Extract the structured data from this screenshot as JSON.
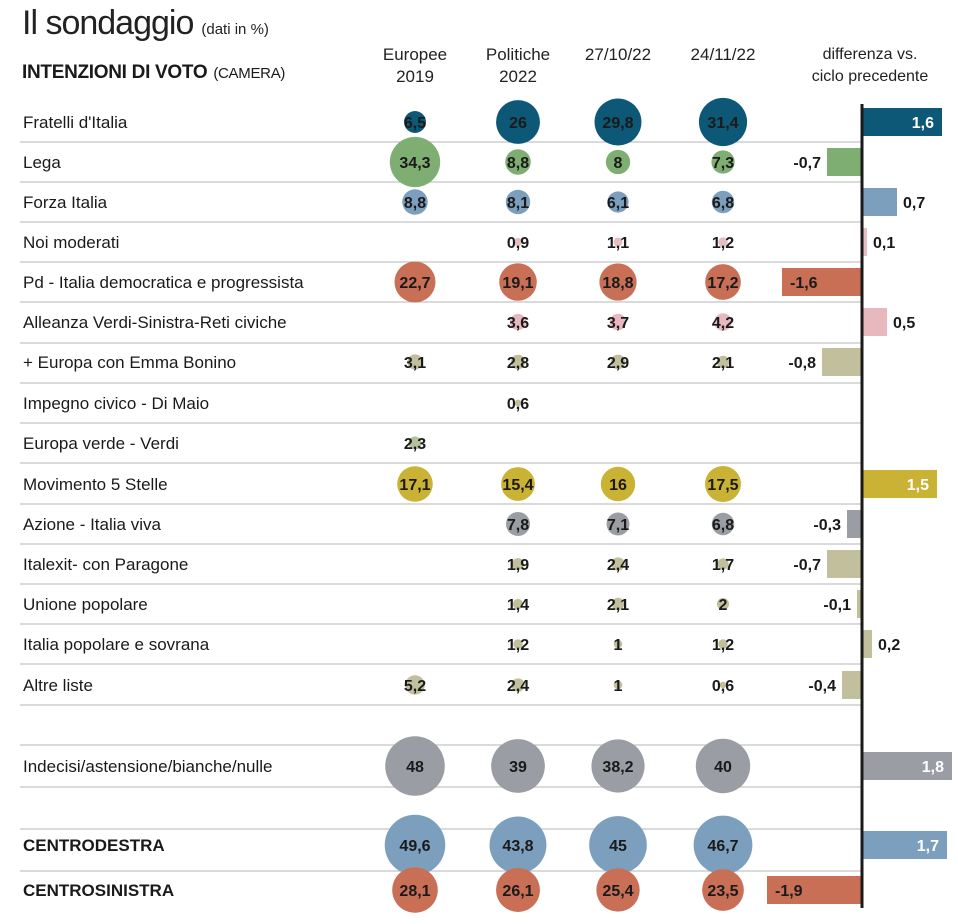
{
  "header": {
    "title": "Il sondaggio",
    "unit_note": "(dati in %)",
    "subtitle": "INTENZIONI DI VOTO",
    "subtitle_note": "(CAMERA)"
  },
  "colors": {
    "fdi": "#0d5777",
    "lega": "#7fae72",
    "fi": "#7c9fbe",
    "noimod": "#e6c0c0",
    "pd": "#c96f55",
    "avs": "#e7b8bd",
    "europa": "#c2bf9c",
    "impegno": "#c2bf9c",
    "euroverde": "#b3c19c",
    "m5s": "#c9b234",
    "azione": "#9a9ea4",
    "italexit": "#c2bf9c",
    "up": "#c2bf9c",
    "ips": "#c2bf9c",
    "altre": "#c2bf9c",
    "indecisi": "#9a9ea4",
    "cdx": "#7c9fbe",
    "csx": "#c96f55",
    "rule": "#b5b5b5",
    "axis": "#1a1a1a"
  },
  "chart_data": {
    "type": "bubble-table",
    "title": "Il sondaggio",
    "subtitle": "INTENZIONI DI VOTO (CAMERA)",
    "unit": "(dati in %)",
    "columns": [
      "Europee 2019",
      "Politiche 2022",
      "27/10/22",
      "24/11/22"
    ],
    "columns_display": [
      [
        "Europee",
        "2019"
      ],
      [
        "Politiche",
        "2022"
      ],
      [
        "27/10/22"
      ],
      [
        "24/11/22"
      ]
    ],
    "diff_header": [
      "differenza vs.",
      "ciclo precedente"
    ],
    "rows": [
      {
        "label": "Fratelli d'Italia",
        "color": "fdi",
        "values": [
          6.5,
          26,
          29.8,
          31.4
        ],
        "display": [
          "6,5",
          "26",
          "29,8",
          "31,4"
        ],
        "diff": 1.6,
        "diff_display": "1,6"
      },
      {
        "label": "Lega",
        "color": "lega",
        "values": [
          34.3,
          8.8,
          8,
          7.3
        ],
        "display": [
          "34,3",
          "8,8",
          "8",
          "7,3"
        ],
        "diff": -0.7,
        "diff_display": "-0,7"
      },
      {
        "label": "Forza Italia",
        "color": "fi",
        "values": [
          8.8,
          8.1,
          6.1,
          6.8
        ],
        "display": [
          "8,8",
          "8,1",
          "6,1",
          "6,8"
        ],
        "diff": 0.7,
        "diff_display": "0,7"
      },
      {
        "label": "Noi moderati",
        "color": "noimod",
        "values": [
          null,
          0.9,
          1.1,
          1.2
        ],
        "display": [
          "",
          "0,9",
          "1,1",
          "1,2"
        ],
        "diff": 0.1,
        "diff_display": "0,1"
      },
      {
        "label": "Pd - Italia democratica e progressista",
        "color": "pd",
        "values": [
          22.7,
          19.1,
          18.8,
          17.2
        ],
        "display": [
          "22,7",
          "19,1",
          "18,8",
          "17,2"
        ],
        "diff": -1.6,
        "diff_display": "-1,6"
      },
      {
        "label": "Alleanza Verdi-Sinistra-Reti civiche",
        "color": "avs",
        "values": [
          null,
          3.6,
          3.7,
          4.2
        ],
        "display": [
          "",
          "3,6",
          "3,7",
          "4,2"
        ],
        "diff": 0.5,
        "diff_display": "0,5"
      },
      {
        "label": "+ Europa con Emma Bonino",
        "color": "europa",
        "values": [
          3.1,
          2.8,
          2.9,
          2.1
        ],
        "display": [
          "3,1",
          "2,8",
          "2,9",
          "2,1"
        ],
        "diff": -0.8,
        "diff_display": "-0,8"
      },
      {
        "label": "Impegno civico - Di Maio",
        "color": "impegno",
        "values": [
          null,
          0.6,
          null,
          null
        ],
        "display": [
          "",
          "0,6",
          "",
          ""
        ],
        "diff": null,
        "diff_display": ""
      },
      {
        "label": "Europa verde - Verdi",
        "color": "euroverde",
        "values": [
          2.3,
          null,
          null,
          null
        ],
        "display": [
          "2,3",
          "",
          "",
          ""
        ],
        "diff": null,
        "diff_display": ""
      },
      {
        "label": "Movimento 5 Stelle",
        "color": "m5s",
        "values": [
          17.1,
          15.4,
          16,
          17.5
        ],
        "display": [
          "17,1",
          "15,4",
          "16",
          "17,5"
        ],
        "diff": 1.5,
        "diff_display": "1,5"
      },
      {
        "label": "Azione - Italia viva",
        "color": "azione",
        "values": [
          null,
          7.8,
          7.1,
          6.8
        ],
        "display": [
          "",
          "7,8",
          "7,1",
          "6,8"
        ],
        "diff": -0.3,
        "diff_display": "-0,3"
      },
      {
        "label": "Italexit- con Paragone",
        "color": "italexit",
        "values": [
          null,
          1.9,
          2.4,
          1.7
        ],
        "display": [
          "",
          "1,9",
          "2,4",
          "1,7"
        ],
        "diff": -0.7,
        "diff_display": "-0,7"
      },
      {
        "label": "Unione popolare",
        "color": "up",
        "values": [
          null,
          1.4,
          2.1,
          2
        ],
        "display": [
          "",
          "1,4",
          "2,1",
          "2"
        ],
        "diff": -0.1,
        "diff_display": "-0,1"
      },
      {
        "label": "Italia popolare e sovrana",
        "color": "ips",
        "values": [
          null,
          1.2,
          1,
          1.2
        ],
        "display": [
          "",
          "1,2",
          "1",
          "1,2"
        ],
        "diff": 0.2,
        "diff_display": "0,2"
      },
      {
        "label": "Altre liste",
        "color": "altre",
        "values": [
          5.2,
          2.4,
          1,
          0.6
        ],
        "display": [
          "5,2",
          "2,4",
          "1",
          "0,6"
        ],
        "diff": -0.4,
        "diff_display": "-0,4"
      },
      {
        "label": "Indecisi/astensione/bianche/nulle",
        "color": "indecisi",
        "values": [
          48,
          39,
          38.2,
          40
        ],
        "display": [
          "48",
          "39",
          "38,2",
          "40"
        ],
        "diff": 1.8,
        "diff_display": "1,8"
      },
      {
        "label": "CENTRODESTRA",
        "color": "cdx",
        "values": [
          49.6,
          43.8,
          45,
          46.7
        ],
        "display": [
          "49,6",
          "43,8",
          "45",
          "46,7"
        ],
        "diff": 1.7,
        "diff_display": "1,7",
        "bold": true
      },
      {
        "label": "CENTROSINISTRA",
        "color": "csx",
        "values": [
          28.1,
          26.1,
          25.4,
          23.5
        ],
        "display": [
          "28,1",
          "26,1",
          "25,4",
          "23,5"
        ],
        "diff": -1.9,
        "diff_display": "-1,9",
        "bold": true
      }
    ]
  }
}
